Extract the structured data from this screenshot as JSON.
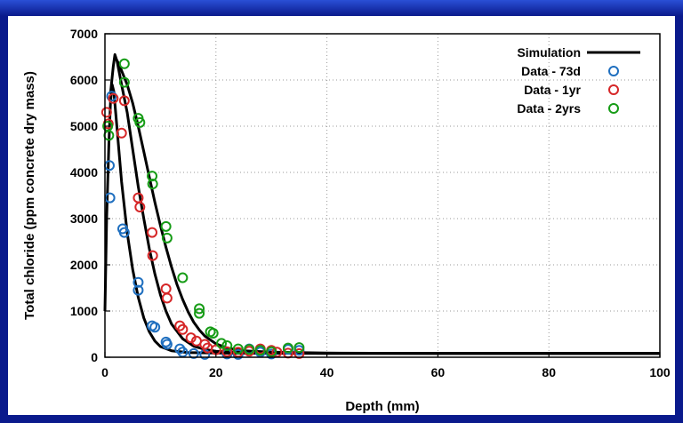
{
  "chart_data": {
    "type": "scatter",
    "xlabel": "Depth (mm)",
    "ylabel": "Total chloride (ppm concrete dry mass)",
    "xlim": [
      0,
      100
    ],
    "ylim": [
      0,
      7000
    ],
    "xticks": [
      "0",
      "20",
      "40",
      "60",
      "80",
      "100"
    ],
    "yticks": [
      "0",
      "1000",
      "2000",
      "3000",
      "4000",
      "5000",
      "6000",
      "7000"
    ],
    "grid": true,
    "legend_position": "top-right",
    "series": [
      {
        "name": "Data - 73d",
        "kind": "scatter",
        "color": "#1f6fbf",
        "points": [
          [
            0.8,
            4150
          ],
          [
            0.9,
            3450
          ],
          [
            1.2,
            5650
          ],
          [
            3.2,
            2780
          ],
          [
            3.5,
            2700
          ],
          [
            6,
            1620
          ],
          [
            6,
            1450
          ],
          [
            8.5,
            680
          ],
          [
            9,
            650
          ],
          [
            11,
            330
          ],
          [
            11.2,
            280
          ],
          [
            13.5,
            180
          ],
          [
            14,
            110
          ],
          [
            16,
            80
          ],
          [
            18,
            60
          ],
          [
            22,
            70
          ],
          [
            24,
            60
          ],
          [
            26,
            180
          ],
          [
            28,
            110
          ],
          [
            30,
            70
          ],
          [
            33,
            170
          ],
          [
            35,
            150
          ]
        ]
      },
      {
        "name": "Data - 1yr",
        "kind": "scatter",
        "color": "#d62728",
        "points": [
          [
            0.3,
            5300
          ],
          [
            0.6,
            5050
          ],
          [
            1.5,
            5600
          ],
          [
            3,
            4850
          ],
          [
            3.5,
            5550
          ],
          [
            6,
            3450
          ],
          [
            6.3,
            3250
          ],
          [
            8.5,
            2700
          ],
          [
            8.6,
            2200
          ],
          [
            11,
            1480
          ],
          [
            11.2,
            1280
          ],
          [
            13.5,
            680
          ],
          [
            14,
            600
          ],
          [
            15.5,
            420
          ],
          [
            16.5,
            350
          ],
          [
            18,
            280
          ],
          [
            18.5,
            200
          ],
          [
            20,
            160
          ],
          [
            22,
            120
          ],
          [
            24,
            110
          ],
          [
            26,
            130
          ],
          [
            28,
            180
          ],
          [
            30,
            150
          ],
          [
            31,
            110
          ],
          [
            33,
            90
          ],
          [
            35,
            80
          ]
        ]
      },
      {
        "name": "Data - 2yrs",
        "kind": "scatter",
        "color": "#169c16",
        "points": [
          [
            0.5,
            5000
          ],
          [
            0.7,
            4800
          ],
          [
            3.5,
            6350
          ],
          [
            3.5,
            5950
          ],
          [
            6,
            5170
          ],
          [
            6.3,
            5080
          ],
          [
            8.5,
            3920
          ],
          [
            8.6,
            3750
          ],
          [
            11,
            2830
          ],
          [
            11.2,
            2580
          ],
          [
            14,
            1720
          ],
          [
            17,
            1050
          ],
          [
            17,
            950
          ],
          [
            19,
            550
          ],
          [
            19.5,
            520
          ],
          [
            21,
            300
          ],
          [
            22,
            250
          ],
          [
            24,
            180
          ],
          [
            26,
            170
          ],
          [
            28,
            150
          ],
          [
            30,
            120
          ],
          [
            33,
            200
          ],
          [
            35,
            210
          ]
        ]
      },
      {
        "name": "Simulation",
        "kind": "line",
        "color": "#000000",
        "curves": [
          [
            [
              0,
              1000
            ],
            [
              0.3,
              3000
            ],
            [
              0.7,
              4600
            ],
            [
              1,
              5500
            ],
            [
              1.3,
              5900
            ],
            [
              1.6,
              5750
            ],
            [
              2,
              5200
            ],
            [
              2.5,
              4500
            ],
            [
              3,
              3800
            ],
            [
              4,
              2700
            ],
            [
              5,
              1900
            ],
            [
              6,
              1300
            ],
            [
              7,
              850
            ],
            [
              8,
              550
            ],
            [
              9,
              350
            ],
            [
              10,
              230
            ],
            [
              12,
              140
            ],
            [
              15,
              100
            ],
            [
              20,
              90
            ],
            [
              40,
              80
            ],
            [
              100,
              80
            ]
          ],
          [
            [
              1,
              5700
            ],
            [
              1.5,
              6300
            ],
            [
              1.8,
              6550
            ],
            [
              2.2,
              6400
            ],
            [
              3,
              5900
            ],
            [
              4,
              5300
            ],
            [
              5,
              4500
            ],
            [
              6,
              3700
            ],
            [
              7,
              3000
            ],
            [
              8,
              2350
            ],
            [
              9,
              1800
            ],
            [
              10,
              1350
            ],
            [
              11,
              1000
            ],
            [
              12,
              720
            ],
            [
              14,
              400
            ],
            [
              16,
              240
            ],
            [
              18,
              170
            ],
            [
              20,
              130
            ],
            [
              25,
              100
            ],
            [
              40,
              85
            ],
            [
              100,
              80
            ]
          ],
          [
            [
              1.8,
              6500
            ],
            [
              2.5,
              6350
            ],
            [
              3,
              6200
            ],
            [
              4,
              5900
            ],
            [
              5,
              5500
            ],
            [
              6,
              5000
            ],
            [
              7,
              4450
            ],
            [
              8,
              3900
            ],
            [
              9,
              3350
            ],
            [
              10,
              2850
            ],
            [
              11,
              2380
            ],
            [
              12,
              1950
            ],
            [
              13,
              1570
            ],
            [
              14,
              1250
            ],
            [
              15,
              980
            ],
            [
              16,
              760
            ],
            [
              17,
              590
            ],
            [
              18,
              460
            ],
            [
              20,
              290
            ],
            [
              22,
              200
            ],
            [
              25,
              140
            ],
            [
              30,
              110
            ],
            [
              40,
              90
            ],
            [
              60,
              80
            ],
            [
              100,
              80
            ]
          ]
        ]
      }
    ]
  }
}
